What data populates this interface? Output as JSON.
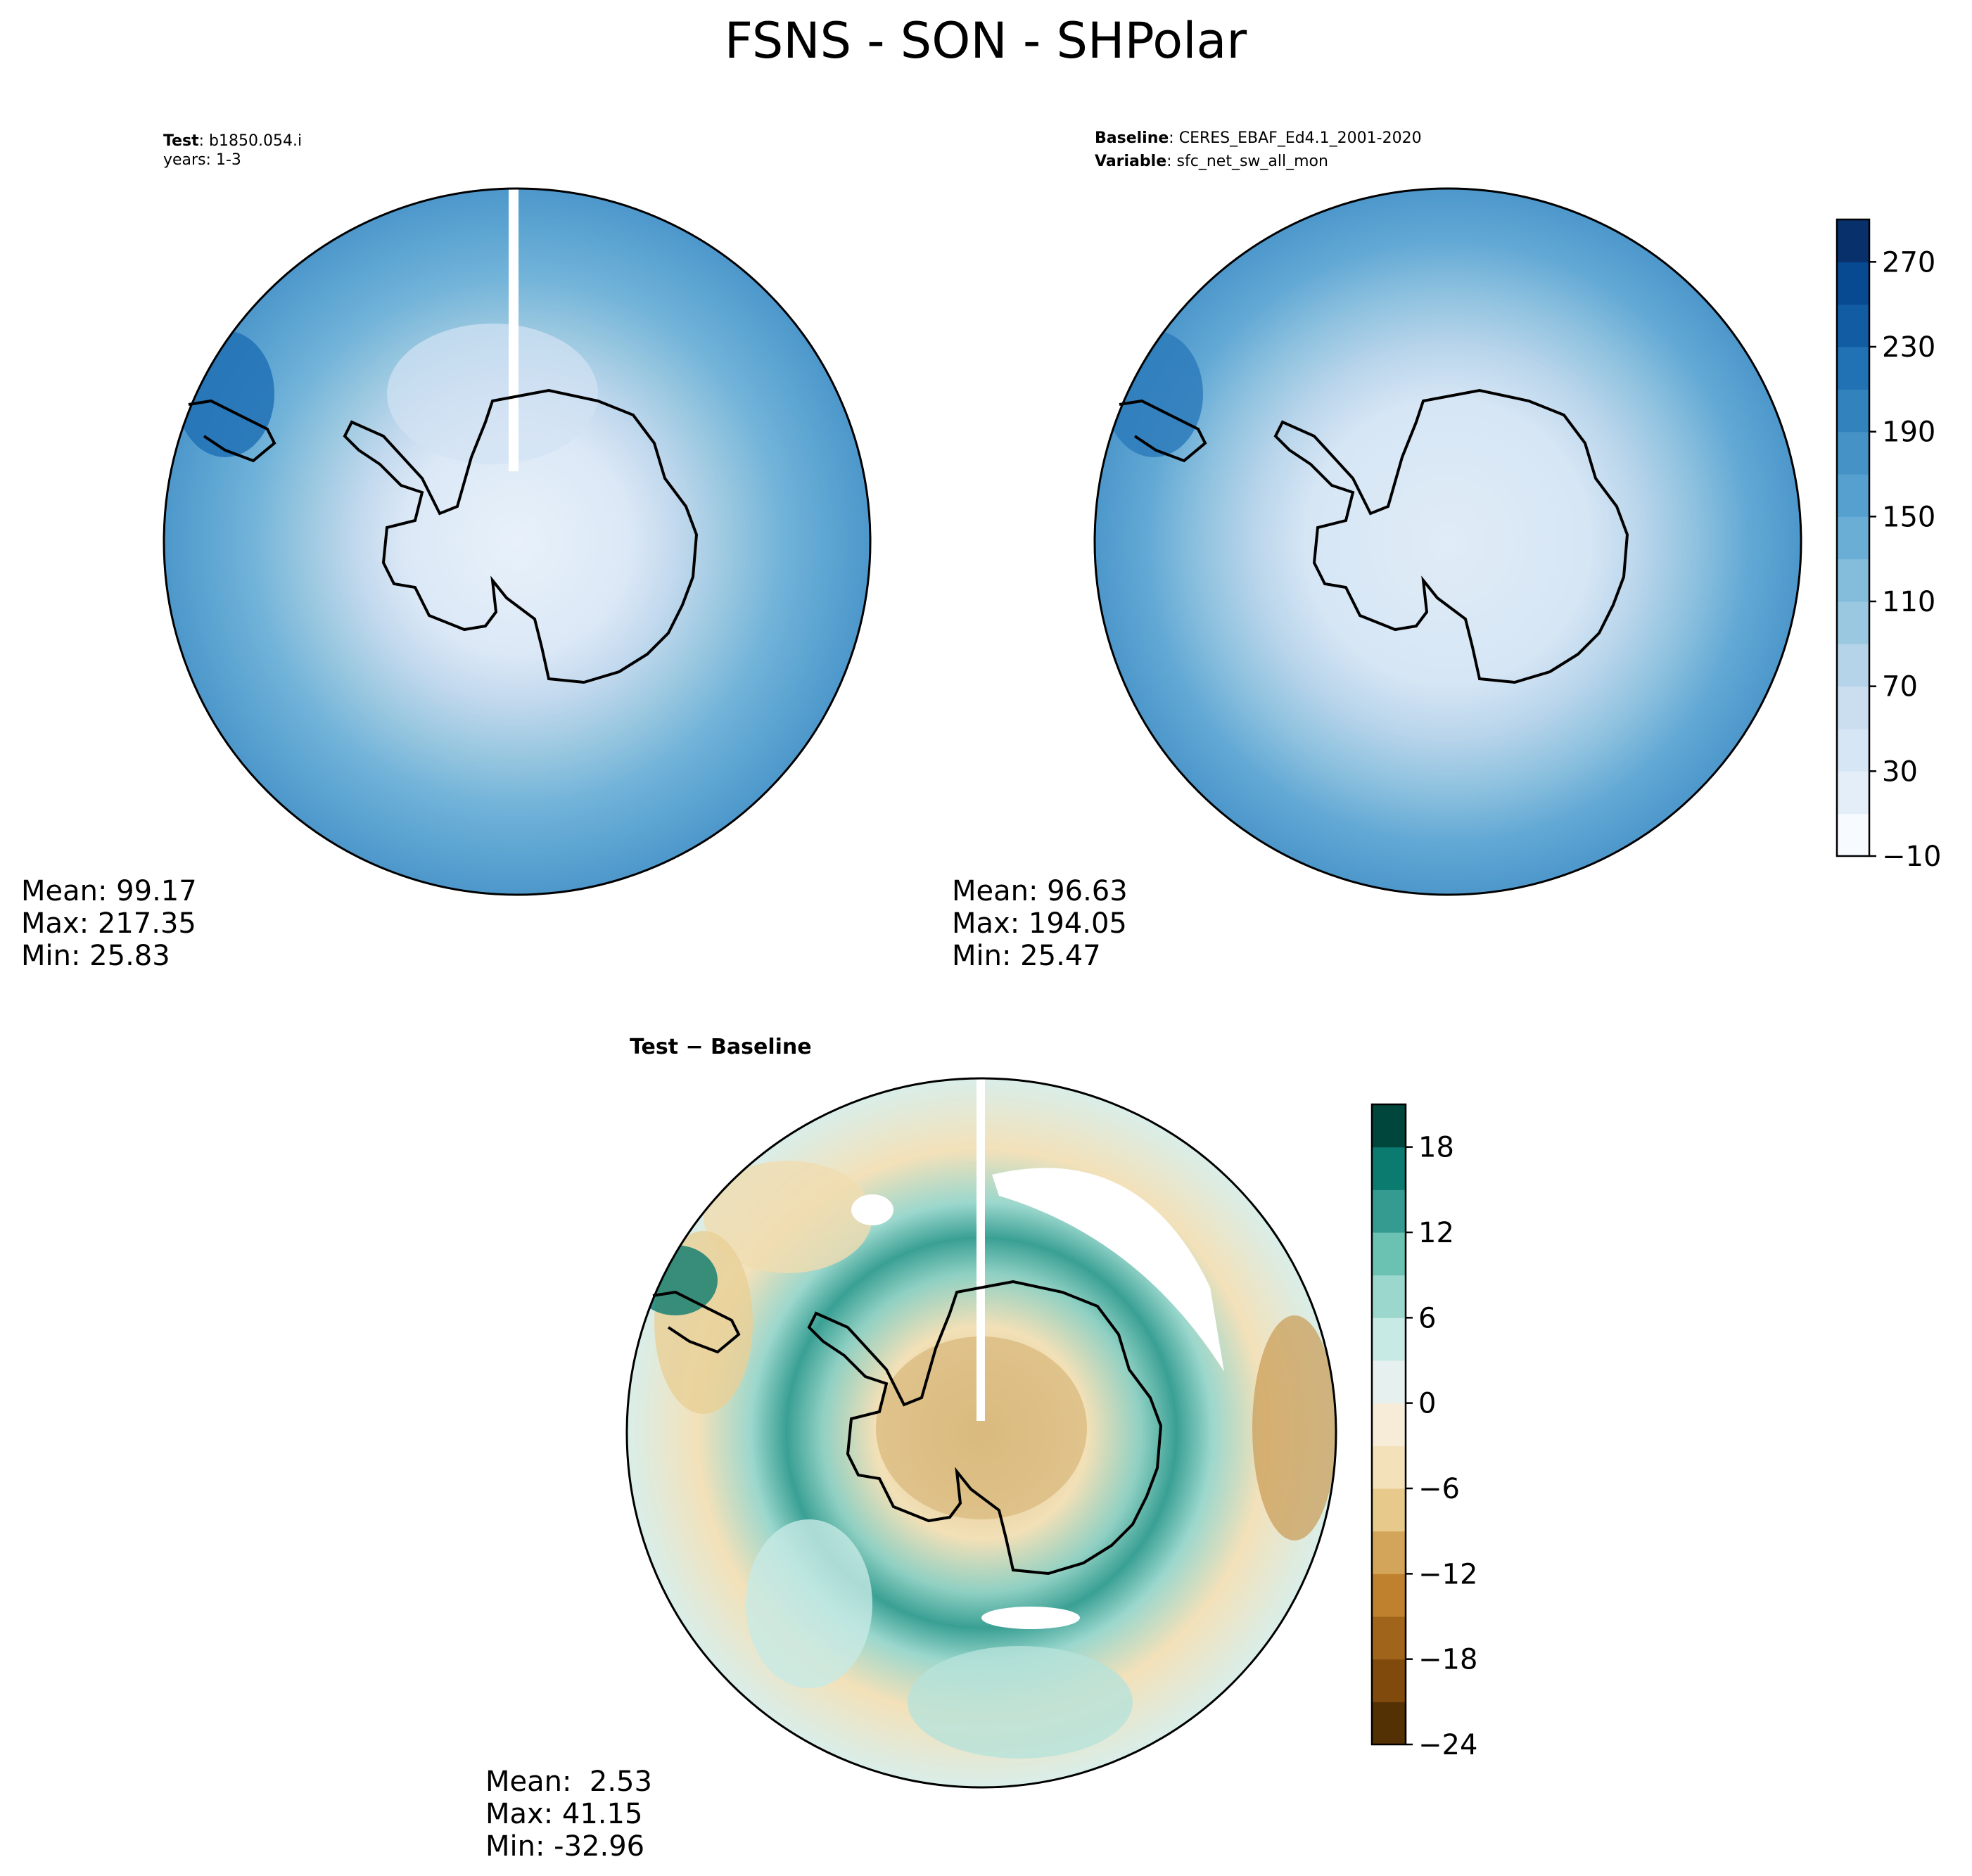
{
  "figure": {
    "title": "FSNS - SON - SHPolar"
  },
  "chart_data": [
    {
      "type": "heatmap",
      "projection": "south-polar-stereographic",
      "panel": "test",
      "header": [
        {
          "label": "Test",
          "value": "b1850.054.i"
        },
        {
          "label": "",
          "value": "years: 1-3"
        }
      ],
      "stats": {
        "mean": "Mean: 99.17",
        "max": "Max: 217.35",
        "min": "Min: 25.83"
      },
      "color_levels": [
        -10,
        10,
        30,
        50,
        70,
        90,
        110,
        130,
        150,
        170,
        190,
        210,
        230,
        250,
        270,
        290
      ],
      "colorbar": "shared-with-baseline"
    },
    {
      "type": "heatmap",
      "projection": "south-polar-stereographic",
      "panel": "baseline",
      "header": [
        {
          "label": "Baseline",
          "value": "CERES_EBAF_Ed4.1_2001-2020"
        },
        {
          "label": "Variable",
          "value": "sfc_net_sw_all_mon"
        }
      ],
      "stats": {
        "mean": "Mean: 96.63",
        "max": "Max: 194.05",
        "min": "Min: 25.47"
      },
      "colorbar": {
        "ticks": [
          "−10",
          "30",
          "70",
          "110",
          "150",
          "190",
          "230",
          "270"
        ],
        "tick_values": [
          -10,
          30,
          70,
          110,
          150,
          190,
          230,
          270
        ],
        "range": [
          -10,
          290
        ],
        "levels": 15,
        "colors": [
          "#f7fbff",
          "#e3eef9",
          "#d7e6f5",
          "#cadef0",
          "#b5d4e9",
          "#9ac8e0",
          "#84bcdb",
          "#6aaed6",
          "#55a0cf",
          "#4592c6",
          "#3282be",
          "#2171b5",
          "#125ca4",
          "#084a91",
          "#08306b"
        ]
      }
    },
    {
      "type": "heatmap",
      "projection": "south-polar-stereographic",
      "panel": "difference",
      "header": [
        {
          "label": "Test − Baseline",
          "value": ""
        }
      ],
      "stats": {
        "mean": "Mean:  2.53",
        "max": "Max: 41.15",
        "min": "Min: -32.96"
      },
      "colorbar": {
        "ticks": [
          "−24",
          "−18",
          "−12",
          "−6",
          "0",
          "6",
          "12",
          "18"
        ],
        "tick_values": [
          -24,
          -18,
          -12,
          -6,
          0,
          6,
          12,
          18
        ],
        "range": [
          -24,
          21
        ],
        "levels": 15,
        "colors": [
          "#543005",
          "#7f4a0b",
          "#a0651a",
          "#bf812d",
          "#d3a55b",
          "#e6c98b",
          "#f3e1b9",
          "#f6ecd8",
          "#e6f0ee",
          "#c7eae5",
          "#9bd7cd",
          "#6bc1b2",
          "#359a90",
          "#0b7a6f",
          "#00463c"
        ]
      }
    }
  ]
}
